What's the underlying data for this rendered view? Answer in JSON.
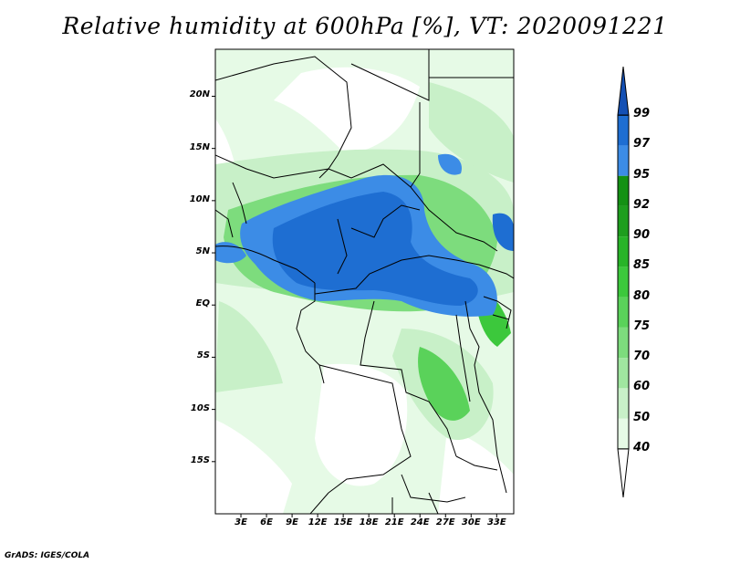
{
  "title": "Relative humidity at 600hPa [%], VT: 2020091221",
  "credit": "GrADS: IGES/COLA",
  "map": {
    "variable": "Relative humidity",
    "level": "600hPa",
    "valid_time": "2020091221",
    "lat_range": [
      -20,
      24.5
    ],
    "lon_range": [
      0,
      35
    ],
    "lat_ticks": [
      {
        "value": 20,
        "label": "20N"
      },
      {
        "value": 15,
        "label": "15N"
      },
      {
        "value": 10,
        "label": "10N"
      },
      {
        "value": 5,
        "label": "5N"
      },
      {
        "value": 0,
        "label": "EQ"
      },
      {
        "value": -5,
        "label": "5S"
      },
      {
        "value": -10,
        "label": "10S"
      },
      {
        "value": -15,
        "label": "15S"
      }
    ],
    "lon_ticks": [
      {
        "value": 3,
        "label": "3E"
      },
      {
        "value": 6,
        "label": "6E"
      },
      {
        "value": 9,
        "label": "9E"
      },
      {
        "value": 12,
        "label": "12E"
      },
      {
        "value": 15,
        "label": "15E"
      },
      {
        "value": 18,
        "label": "18E"
      },
      {
        "value": 21,
        "label": "21E"
      },
      {
        "value": 24,
        "label": "24E"
      },
      {
        "value": 27,
        "label": "27E"
      },
      {
        "value": 30,
        "label": "30E"
      },
      {
        "value": 33,
        "label": "33E"
      }
    ]
  },
  "colorbar": {
    "levels": [
      "40",
      "50",
      "60",
      "70",
      "75",
      "80",
      "85",
      "90",
      "92",
      "95",
      "97",
      "99"
    ],
    "colors": [
      "#ffffff",
      "#e6fae6",
      "#c8f0c8",
      "#a0e6a0",
      "#7ddc7d",
      "#5ad25a",
      "#3cc83c",
      "#28b428",
      "#1e9e1e",
      "#149114",
      "#3c8ce6",
      "#1e6ed2",
      "#1450b4"
    ]
  }
}
